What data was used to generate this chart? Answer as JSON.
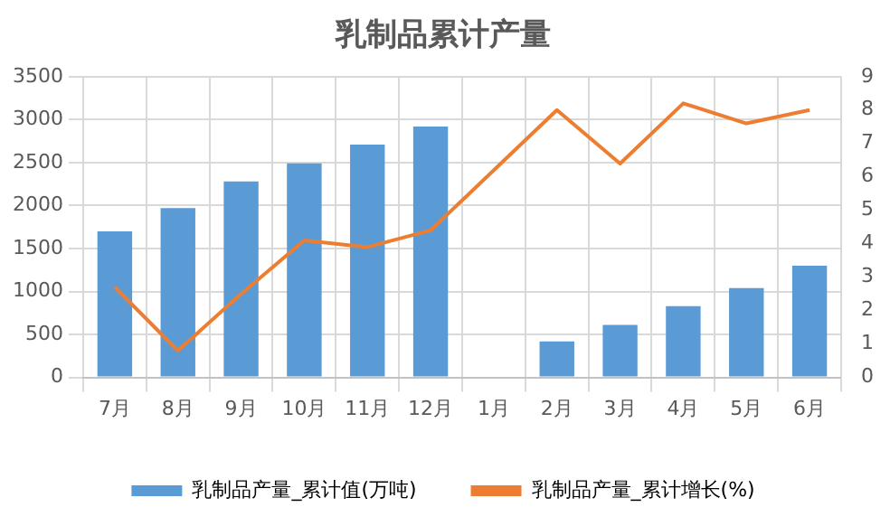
{
  "chart_data": {
    "type": "bar",
    "title": "乳制品累计产量",
    "categories": [
      "7月",
      "8月",
      "9月",
      "10月",
      "11月",
      "12月",
      "1月",
      "2月",
      "3月",
      "4月",
      "5月",
      "6月"
    ],
    "series": [
      {
        "name": "乳制品产量_累计值(万吨)",
        "color": "#5b9bd5",
        "values": [
          1700,
          1970,
          2280,
          2490,
          2710,
          2920,
          null,
          420,
          610,
          830,
          1040,
          1300
        ]
      },
      {
        "name": "乳制品产量_累计增长(%)",
        "type": "line",
        "axis": "y2",
        "color": "#ed7d31",
        "values": [
          2.7,
          0.8,
          2.5,
          4.1,
          3.9,
          4.4,
          null,
          8.0,
          6.4,
          8.2,
          7.6,
          8.0
        ]
      }
    ],
    "ylim": [
      0,
      3500
    ],
    "yticks": [
      0,
      500,
      1000,
      1500,
      2000,
      2500,
      3000,
      3500
    ],
    "y2lim": [
      0,
      9
    ],
    "y2ticks": [
      0,
      1,
      2,
      3,
      4,
      5,
      6,
      7,
      8,
      9
    ],
    "grid": true,
    "legend": "bottom",
    "marker": "none"
  }
}
